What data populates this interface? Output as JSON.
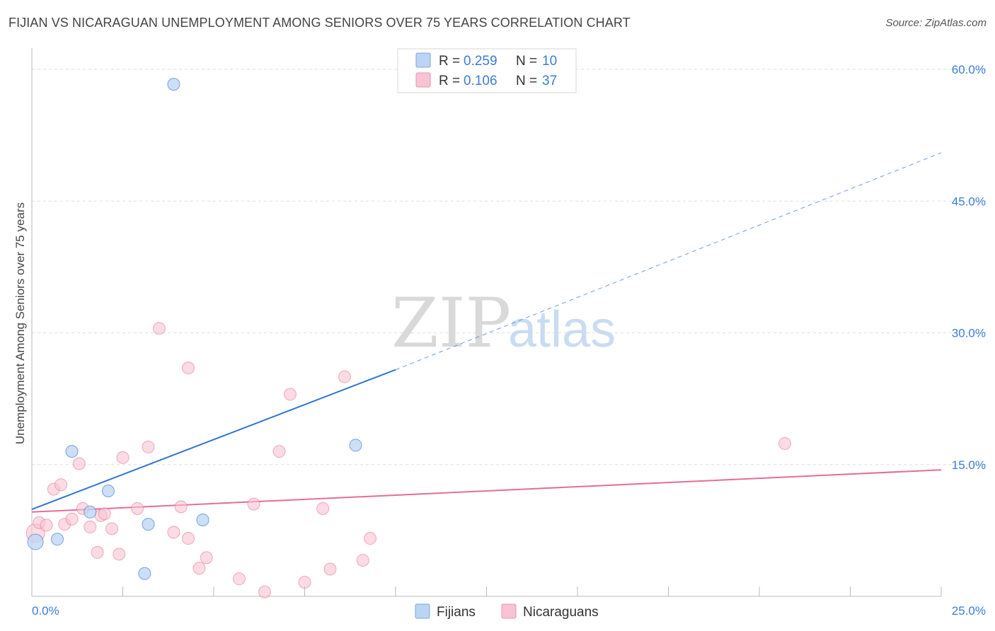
{
  "header": {
    "title": "FIJIAN VS NICARAGUAN UNEMPLOYMENT AMONG SENIORS OVER 75 YEARS CORRELATION CHART",
    "source": "Source: ZipAtlas.com"
  },
  "watermark": {
    "part1": "ZIP",
    "part2": "atlas"
  },
  "colors": {
    "fijians": "#5b8fd6",
    "fijians_fill": "#bcd4f4",
    "fijians_line": "#2f75d1",
    "nicaraguans": "#e8779a",
    "nicaraguans_fill": "#f8c3d2",
    "nicaraguans_line": "#e56d97",
    "grid": "#dddddd",
    "axis_text": "#3b7dd8"
  },
  "legend": {
    "rows": [
      {
        "r_label": "R =",
        "r_value": "0.259",
        "n_label": "N =",
        "n_value": "10"
      },
      {
        "r_label": "R =",
        "r_value": "0.106",
        "n_label": "N =",
        "n_value": "37"
      }
    ]
  },
  "bottom_legend": [
    "Fijians",
    "Nicaraguans"
  ],
  "chart_data": {
    "type": "scatter",
    "title": "FIJIAN VS NICARAGUAN UNEMPLOYMENT AMONG SENIORS OVER 75 YEARS CORRELATION CHART",
    "xlabel": "",
    "ylabel": "Unemployment Among Seniors over 75 years",
    "xlim": [
      0,
      25
    ],
    "ylim": [
      0,
      60
    ],
    "x_tick_labels": [
      "0.0%",
      "25.0%"
    ],
    "y_ticks": [
      15,
      30,
      45,
      60
    ],
    "y_tick_labels": [
      "15.0%",
      "30.0%",
      "45.0%",
      "60.0%"
    ],
    "grid": true,
    "series": [
      {
        "name": "Fijians",
        "r": 0.259,
        "n": 10,
        "points": [
          [
            0.1,
            6.2
          ],
          [
            0.7,
            6.5
          ],
          [
            1.1,
            16.5
          ],
          [
            1.6,
            9.6
          ],
          [
            2.1,
            12.0
          ],
          [
            3.1,
            2.6
          ],
          [
            3.2,
            8.2
          ],
          [
            3.9,
            58.3
          ],
          [
            4.7,
            8.7
          ],
          [
            8.9,
            17.2
          ]
        ],
        "trend": {
          "x0": 0,
          "y0": 9.9,
          "x1": 10,
          "y1": 25.8,
          "dash_to_x": 25,
          "dash_to_y": 50.5
        }
      },
      {
        "name": "Nicaraguans",
        "r": 0.106,
        "n": 37,
        "points": [
          [
            0.1,
            7.2
          ],
          [
            0.2,
            8.4
          ],
          [
            0.4,
            8.1
          ],
          [
            0.6,
            12.2
          ],
          [
            0.8,
            12.7
          ],
          [
            0.9,
            8.2
          ],
          [
            1.1,
            8.8
          ],
          [
            1.3,
            15.1
          ],
          [
            1.4,
            10.0
          ],
          [
            1.6,
            7.9
          ],
          [
            1.8,
            5.0
          ],
          [
            1.9,
            9.2
          ],
          [
            2.0,
            9.4
          ],
          [
            2.2,
            7.7
          ],
          [
            2.4,
            4.8
          ],
          [
            2.5,
            15.8
          ],
          [
            2.9,
            10.0
          ],
          [
            3.2,
            17.0
          ],
          [
            3.5,
            30.5
          ],
          [
            3.9,
            7.3
          ],
          [
            4.1,
            10.2
          ],
          [
            4.3,
            6.6
          ],
          [
            4.3,
            26.0
          ],
          [
            4.6,
            3.2
          ],
          [
            4.8,
            4.4
          ],
          [
            5.7,
            2.0
          ],
          [
            6.1,
            10.5
          ],
          [
            6.4,
            0.5
          ],
          [
            6.8,
            16.5
          ],
          [
            7.1,
            23.0
          ],
          [
            7.5,
            1.6
          ],
          [
            8.0,
            10.0
          ],
          [
            8.2,
            3.1
          ],
          [
            8.6,
            25.0
          ],
          [
            9.1,
            4.1
          ],
          [
            9.3,
            6.6
          ],
          [
            20.7,
            17.4
          ]
        ],
        "trend": {
          "x0": 0,
          "y0": 9.6,
          "x1": 25,
          "y1": 14.4
        }
      }
    ]
  }
}
